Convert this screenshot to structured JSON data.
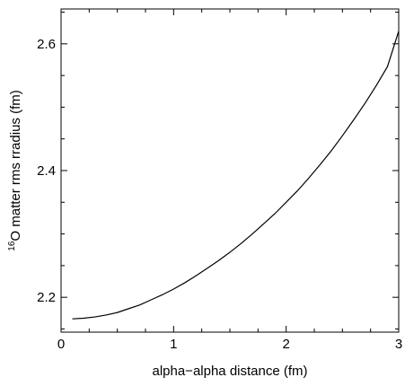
{
  "chart_data": {
    "type": "line",
    "title": "",
    "xlabel": "alpha−alpha distance (fm)",
    "ylabel": {
      "superscript": "16",
      "text": "O matter rms rradius (fm)"
    },
    "xlim": [
      0,
      3
    ],
    "ylim": [
      2.145,
      2.655
    ],
    "x_major_ticks": [
      0,
      1,
      2,
      3
    ],
    "x_tick_labels": [
      "0",
      "1",
      "2",
      "3"
    ],
    "x_minor_step": 0.25,
    "y_major_ticks": [
      2.2,
      2.4,
      2.6
    ],
    "y_tick_labels": [
      "2.2",
      "2.4",
      "2.6"
    ],
    "y_minor_step": 0.05,
    "grid": false,
    "series": [
      {
        "x": [
          0.1,
          0.2,
          0.3,
          0.4,
          0.5,
          0.6,
          0.7,
          0.8,
          0.9,
          1.0,
          1.1,
          1.2,
          1.3,
          1.4,
          1.5,
          1.6,
          1.7,
          1.8,
          1.9,
          2.0,
          2.1,
          2.2,
          2.3,
          2.4,
          2.5,
          2.6,
          2.7,
          2.8,
          2.9,
          3.0
        ],
        "y": [
          2.166,
          2.167,
          2.169,
          2.172,
          2.176,
          2.182,
          2.188,
          2.196,
          2.204,
          2.213,
          2.223,
          2.234,
          2.246,
          2.258,
          2.271,
          2.285,
          2.3,
          2.316,
          2.332,
          2.35,
          2.368,
          2.388,
          2.409,
          2.431,
          2.455,
          2.48,
          2.506,
          2.534,
          2.564,
          2.62
        ]
      }
    ]
  }
}
